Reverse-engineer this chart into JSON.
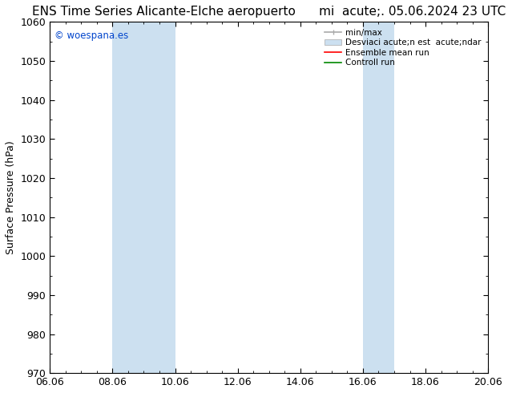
{
  "title_left": "ENS Time Series Alicante-Elche aeropuerto",
  "title_right": "mi  acute;. 05.06.2024 23 UTC",
  "ylabel": "Surface Pressure (hPa)",
  "ylim": [
    970,
    1060
  ],
  "yticks": [
    970,
    980,
    990,
    1000,
    1010,
    1020,
    1030,
    1040,
    1050,
    1060
  ],
  "xlim_start": 0,
  "xlim_end": 14,
  "xtick_labels": [
    "06.06",
    "08.06",
    "10.06",
    "12.06",
    "14.06",
    "16.06",
    "18.06",
    "20.06"
  ],
  "xtick_positions": [
    0,
    2,
    4,
    6,
    8,
    10,
    12,
    14
  ],
  "shaded_bands": [
    {
      "x_start": 2,
      "x_end": 4,
      "color": "#cce0f0"
    },
    {
      "x_start": 10,
      "x_end": 11.0,
      "color": "#cce0f0"
    }
  ],
  "background_color": "#ffffff",
  "plot_bg_color": "#ffffff",
  "legend_label_minmax": "min/max",
  "legend_label_std": "Desviaci acute;n est  acute;ndar",
  "legend_label_ensemble": "Ensemble mean run",
  "legend_label_control": "Controll run",
  "legend_color_minmax": "#aaaaaa",
  "legend_color_std": "#cce0f0",
  "legend_color_ensemble": "#ff0000",
  "legend_color_control": "#008800",
  "watermark": "© woespana.es",
  "watermark_color": "#0044cc",
  "title_fontsize": 11,
  "axis_fontsize": 9,
  "tick_fontsize": 9
}
